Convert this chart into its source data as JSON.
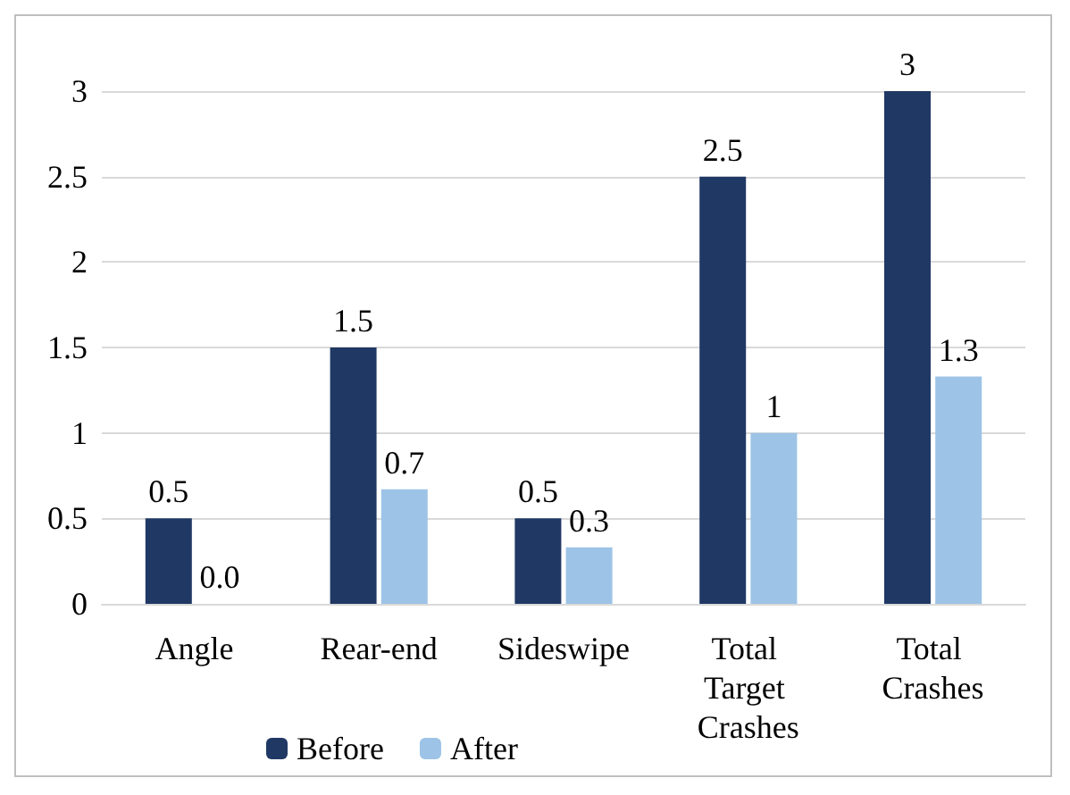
{
  "chart_data": {
    "type": "bar",
    "categories": [
      "Angle",
      "Rear-end",
      "Sideswipe",
      "Total Target Crashes",
      "Total Crashes"
    ],
    "series": [
      {
        "name": "Before",
        "color": "#203864",
        "values": [
          0.5,
          1.5,
          0.5,
          2.5,
          3
        ],
        "value_labels": [
          "0.5",
          "1.5",
          "0.5",
          "2.5",
          "3"
        ]
      },
      {
        "name": "After",
        "color": "#9dc3e6",
        "values": [
          0,
          0.67,
          0.33,
          1,
          1.33
        ],
        "value_labels": [
          "0.0",
          "0.7",
          "0.3",
          "1",
          "1.3"
        ]
      }
    ],
    "ylim": [
      0,
      3
    ],
    "yticks": [
      0,
      0.5,
      1,
      1.5,
      2,
      2.5,
      3
    ],
    "grid": "y",
    "legend": "bottom"
  }
}
